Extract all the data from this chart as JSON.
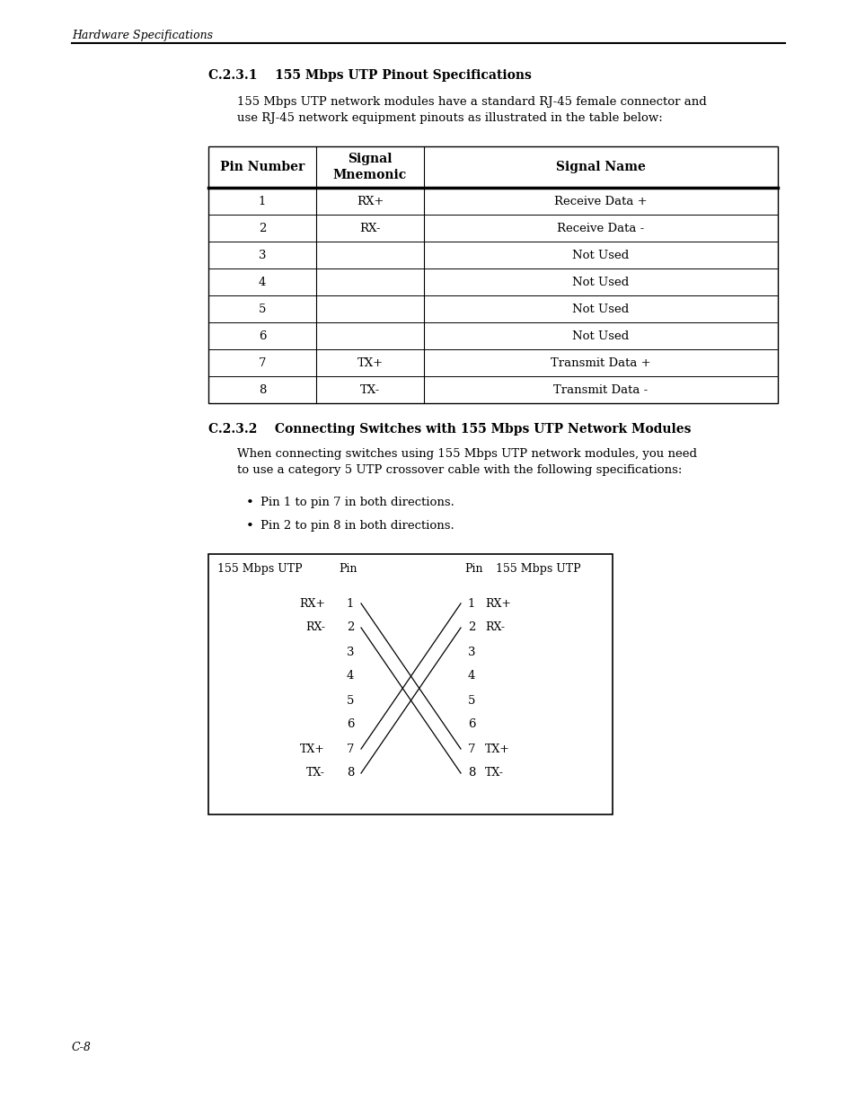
{
  "page_title": "Hardware Specifications",
  "section1_heading": "C.2.3.1    155 Mbps UTP Pinout Specifications",
  "section1_body": "155 Mbps UTP network modules have a standard RJ-45 female connector and\nuse RJ-45 network equipment pinouts as illustrated in the table below:",
  "table_headers": [
    "Pin Number",
    "Signal\nMnemonic",
    "Signal Name"
  ],
  "table_rows": [
    [
      "1",
      "RX+",
      "Receive Data +"
    ],
    [
      "2",
      "RX-",
      "Receive Data -"
    ],
    [
      "3",
      "",
      "Not Used"
    ],
    [
      "4",
      "",
      "Not Used"
    ],
    [
      "5",
      "",
      "Not Used"
    ],
    [
      "6",
      "",
      "Not Used"
    ],
    [
      "7",
      "TX+",
      "Transmit Data +"
    ],
    [
      "8",
      "TX-",
      "Transmit Data -"
    ]
  ],
  "section2_heading": "C.2.3.2    Connecting Switches with 155 Mbps UTP Network Modules",
  "section2_body": "When connecting switches using 155 Mbps UTP network modules, you need\nto use a category 5 UTP crossover cable with the following specifications:",
  "bullets": [
    "Pin 1 to pin 7 in both directions.",
    "Pin 2 to pin 8 in both directions."
  ],
  "diagram_left_labels": [
    "RX+",
    "RX-",
    "",
    "",
    "",
    "",
    "TX+",
    "TX-"
  ],
  "diagram_right_labels": [
    "RX+",
    "RX-",
    "",
    "",
    "",
    "",
    "TX+",
    "TX-"
  ],
  "diagram_pins": [
    "1",
    "2",
    "3",
    "4",
    "5",
    "6",
    "7",
    "8"
  ],
  "page_number": "C-8",
  "bg_color": "#ffffff",
  "text_color": "#000000"
}
